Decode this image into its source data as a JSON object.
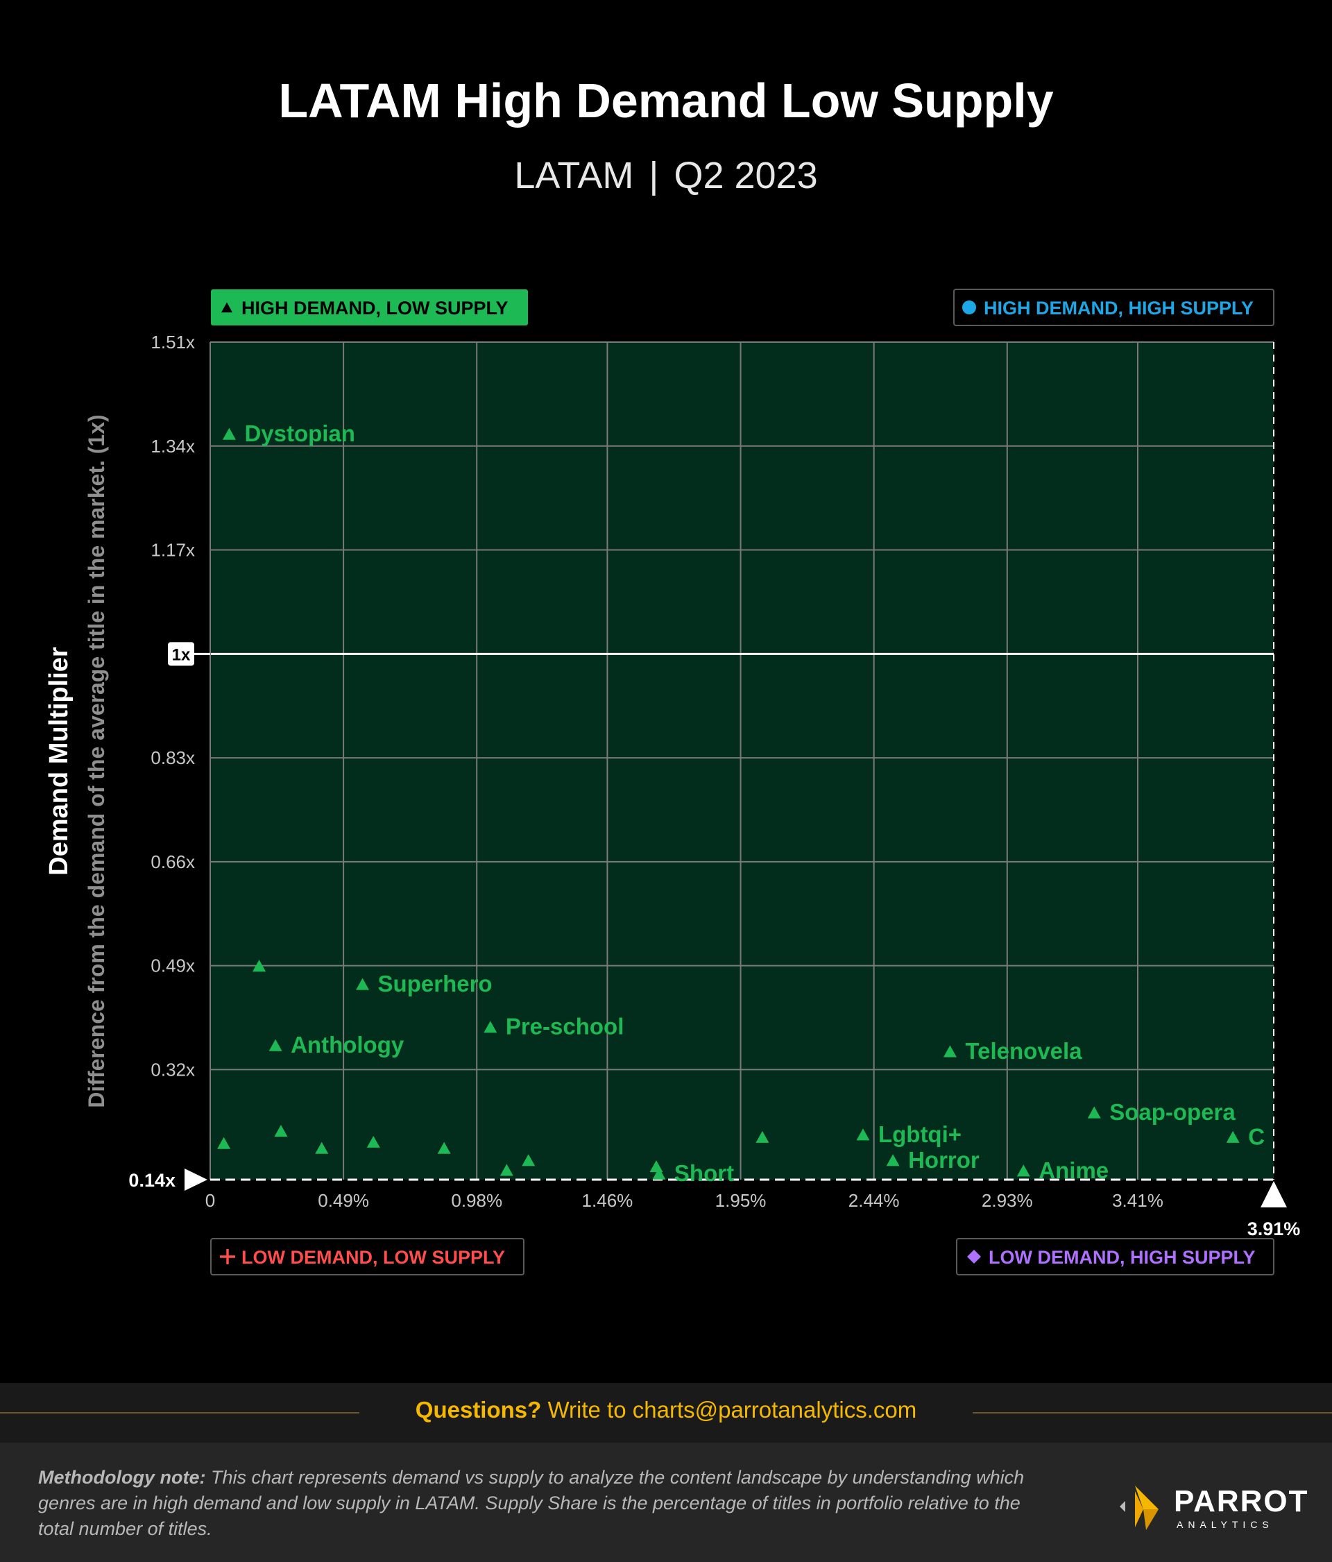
{
  "header": {
    "title": "LATAM High Demand Low Supply",
    "region": "LATAM",
    "period": "Q2 2023",
    "separator": "|"
  },
  "chart_data": {
    "type": "scatter",
    "title": "LATAM High Demand Low Supply",
    "ylabel": "Demand Multiplier",
    "ylabel_sub": "Difference from the demand of the average title in the market. (1x)",
    "xlim": [
      0,
      3.91
    ],
    "ylim": [
      0.14,
      1.51
    ],
    "x_ticks": [
      {
        "value": 0,
        "label": "0"
      },
      {
        "value": 0.49,
        "label": "0.49%"
      },
      {
        "value": 0.98,
        "label": "0.98%"
      },
      {
        "value": 1.46,
        "label": "1.46%"
      },
      {
        "value": 1.95,
        "label": "1.95%"
      },
      {
        "value": 2.44,
        "label": "2.44%"
      },
      {
        "value": 2.93,
        "label": "2.93%"
      },
      {
        "value": 3.41,
        "label": "3.41%"
      }
    ],
    "x_max_label": "3.91%",
    "y_ticks": [
      {
        "value": 1.51,
        "label": "1.51x"
      },
      {
        "value": 1.34,
        "label": "1.34x"
      },
      {
        "value": 1.17,
        "label": "1.17x"
      },
      {
        "value": 1.0,
        "label": "1x"
      },
      {
        "value": 0.83,
        "label": "0.83x"
      },
      {
        "value": 0.66,
        "label": "0.66x"
      },
      {
        "value": 0.49,
        "label": "0.49x"
      },
      {
        "value": 0.32,
        "label": "0.32x"
      }
    ],
    "y_min_label": "0.14x",
    "grid": true,
    "quadrants": {
      "top_left": "HIGH DEMAND, LOW SUPPLY",
      "top_right": "HIGH DEMAND, HIGH SUPPLY",
      "bottom_left": "LOW DEMAND, LOW SUPPLY",
      "bottom_right": "LOW DEMAND, HIGH SUPPLY"
    },
    "quadrant_colors": {
      "top_left": "#1db954",
      "top_right": "#1ea7e6",
      "bottom_left": "#ff4d4d",
      "bottom_right": "#b070ff"
    },
    "point_color": "#1db954",
    "points": [
      {
        "x": 0.07,
        "y": 1.36,
        "label": "Dystopian"
      },
      {
        "x": 0.18,
        "y": 0.49,
        "label": ""
      },
      {
        "x": 0.56,
        "y": 0.46,
        "label": "Superhero"
      },
      {
        "x": 1.03,
        "y": 0.39,
        "label": "Pre-school"
      },
      {
        "x": 0.24,
        "y": 0.36,
        "label": "Anthology"
      },
      {
        "x": 2.72,
        "y": 0.35,
        "label": "Telenovela"
      },
      {
        "x": 3.25,
        "y": 0.25,
        "label": "Soap-opera"
      },
      {
        "x": 3.76,
        "y": 0.21,
        "label": "C"
      },
      {
        "x": 2.4,
        "y": 0.214,
        "label": "Lgbtqi+"
      },
      {
        "x": 2.51,
        "y": 0.172,
        "label": "Horror"
      },
      {
        "x": 2.99,
        "y": 0.155,
        "label": "Anime"
      },
      {
        "x": 1.64,
        "y": 0.162,
        "label": ""
      },
      {
        "x": 1.65,
        "y": 0.15,
        "label": "Short"
      },
      {
        "x": 0.05,
        "y": 0.2,
        "label": ""
      },
      {
        "x": 0.26,
        "y": 0.22,
        "label": ""
      },
      {
        "x": 0.41,
        "y": 0.192,
        "label": ""
      },
      {
        "x": 0.6,
        "y": 0.202,
        "label": ""
      },
      {
        "x": 0.86,
        "y": 0.192,
        "label": ""
      },
      {
        "x": 1.09,
        "y": 0.156,
        "label": ""
      },
      {
        "x": 1.17,
        "y": 0.172,
        "label": ""
      },
      {
        "x": 2.03,
        "y": 0.21,
        "label": ""
      }
    ]
  },
  "footer": {
    "question_lead": "Questions?",
    "question_text": " Write to charts@parrotanalytics.com",
    "methodology_lead": "Methodology note:",
    "methodology_text": " This chart represents demand vs supply to analyze the content landscape by understanding which genres are in high demand and low supply in LATAM. Supply Share is the percentage of titles in portfolio relative to the total number of titles.",
    "logo_word": "PARROT",
    "logo_sub": "ANALYTICS"
  }
}
